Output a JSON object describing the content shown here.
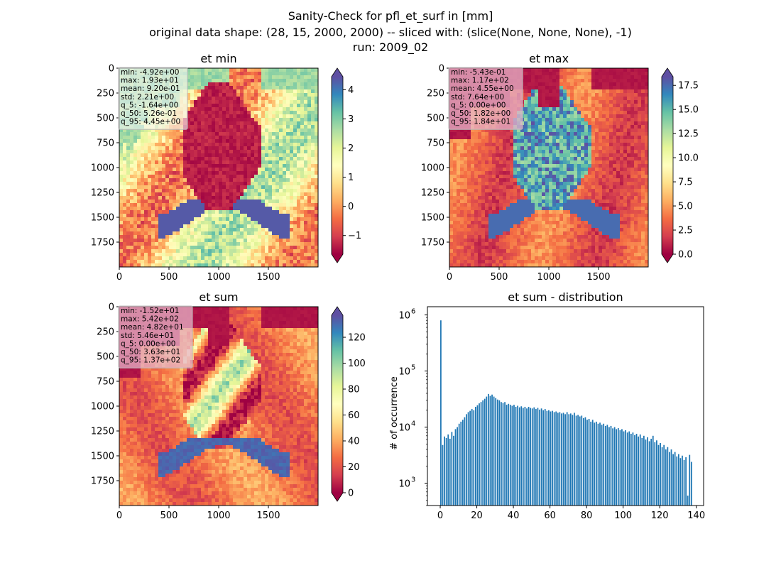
{
  "figure": {
    "title_lines": [
      "Sanity-Check for pfl_et_surf in [mm]",
      "original data shape: (28, 15, 2000, 2000) -- sliced with: (slice(None, None, None), -1)",
      "run: 2009_02"
    ]
  },
  "chart_data": [
    {
      "type": "heatmap",
      "title": "et min",
      "colormap": "Spectral",
      "x_ticks": [
        "0",
        "500",
        "1000",
        "1500"
      ],
      "y_ticks": [
        "0",
        "250",
        "500",
        "750",
        "1000",
        "1250",
        "1500",
        "1750"
      ],
      "xlim": [
        0,
        2000
      ],
      "ylim": [
        0,
        2000
      ],
      "colorbar": {
        "range": [
          -1.64,
          4.45
        ],
        "ticks": [
          -1,
          0,
          1,
          2,
          3,
          4
        ],
        "tick_labels": [
          "−1",
          "0",
          "1",
          "2",
          "3",
          "4"
        ],
        "extend": "both"
      },
      "stats": [
        "min: -4.92e+00",
        "max: 1.93e+01",
        "mean: 9.20e-01",
        "std: 2.21e+00",
        "q_5: -1.64e+00",
        "q_50: 5.26e-01",
        "q_95: 4.45e+00"
      ]
    },
    {
      "type": "heatmap",
      "title": "et max",
      "colormap": "Spectral",
      "x_ticks": [
        "0",
        "500",
        "1000",
        "1500"
      ],
      "y_ticks": [
        "0",
        "250",
        "500",
        "750",
        "1000",
        "1250",
        "1500",
        "1750"
      ],
      "xlim": [
        0,
        2000
      ],
      "ylim": [
        0,
        2000
      ],
      "colorbar": {
        "range": [
          0.0,
          18.4
        ],
        "ticks": [
          0,
          2.5,
          5,
          7.5,
          10,
          12.5,
          15,
          17.5
        ],
        "tick_labels": [
          "0.0",
          "2.5",
          "5.0",
          "7.5",
          "10.0",
          "12.5",
          "15.0",
          "17.5"
        ],
        "extend": "both"
      },
      "stats": [
        "min: -5.43e-01",
        "max: 1.17e+02",
        "mean: 4.55e+00",
        "std: 7.64e+00",
        "q_5: 0.00e+00",
        "q_50: 1.82e+00",
        "q_95: 1.84e+01"
      ]
    },
    {
      "type": "heatmap",
      "title": "et sum",
      "colormap": "Spectral",
      "x_ticks": [
        "0",
        "500",
        "1000",
        "1500"
      ],
      "y_ticks": [
        "0",
        "250",
        "500",
        "750",
        "1000",
        "1250",
        "1500",
        "1750"
      ],
      "xlim": [
        0,
        2000
      ],
      "ylim": [
        0,
        2000
      ],
      "colorbar": {
        "range": [
          0.0,
          137
        ],
        "ticks": [
          0,
          20,
          40,
          60,
          80,
          100,
          120
        ],
        "tick_labels": [
          "0",
          "20",
          "40",
          "60",
          "80",
          "100",
          "120"
        ],
        "extend": "both"
      },
      "stats": [
        "min: -1.52e+01",
        "max: 5.42e+02",
        "mean: 4.82e+01",
        "std: 5.46e+01",
        "q_5: 0.00e+00",
        "q_50: 3.63e+01",
        "q_95: 1.37e+02"
      ]
    },
    {
      "type": "bar",
      "title": "et sum - distribution",
      "ylabel": "# of occurrence",
      "yscale": "log",
      "xlim": [
        -7,
        144
      ],
      "ylim": [
        400,
        1400000
      ],
      "x_ticks": [
        0,
        20,
        40,
        60,
        80,
        100,
        120,
        140
      ],
      "y_ticks": [
        {
          "value": 1000,
          "base": "10",
          "exp": "3"
        },
        {
          "value": 10000,
          "base": "10",
          "exp": "4"
        },
        {
          "value": 100000,
          "base": "10",
          "exp": "5"
        },
        {
          "value": 1000000,
          "base": "10",
          "exp": "6"
        }
      ],
      "bar_color": "#1f77b4",
      "bin_width": 0.685,
      "bins": [
        {
          "x": 0,
          "y": 800000
        },
        {
          "x": 1,
          "y": 4800
        },
        {
          "x": 2,
          "y": 6800
        },
        {
          "x": 3,
          "y": 6400
        },
        {
          "x": 4,
          "y": 7400
        },
        {
          "x": 5,
          "y": 6200
        },
        {
          "x": 6,
          "y": 8200
        },
        {
          "x": 7,
          "y": 7000
        },
        {
          "x": 8,
          "y": 9200
        },
        {
          "x": 9,
          "y": 10000
        },
        {
          "x": 10,
          "y": 11500
        },
        {
          "x": 11,
          "y": 12500
        },
        {
          "x": 12,
          "y": 13500
        },
        {
          "x": 13,
          "y": 15000
        },
        {
          "x": 14,
          "y": 17000
        },
        {
          "x": 15,
          "y": 18500
        },
        {
          "x": 16,
          "y": 19500
        },
        {
          "x": 17,
          "y": 21000
        },
        {
          "x": 18,
          "y": 20000
        },
        {
          "x": 19,
          "y": 23000
        },
        {
          "x": 20,
          "y": 24500
        },
        {
          "x": 21,
          "y": 26500
        },
        {
          "x": 22,
          "y": 28000
        },
        {
          "x": 23,
          "y": 30000
        },
        {
          "x": 24,
          "y": 32000
        },
        {
          "x": 25,
          "y": 35000
        },
        {
          "x": 26,
          "y": 39000
        },
        {
          "x": 27,
          "y": 36000
        },
        {
          "x": 28,
          "y": 38000
        },
        {
          "x": 29,
          "y": 35000
        },
        {
          "x": 30,
          "y": 33000
        },
        {
          "x": 31,
          "y": 31000
        },
        {
          "x": 32,
          "y": 30000
        },
        {
          "x": 33,
          "y": 28000
        },
        {
          "x": 34,
          "y": 27000
        },
        {
          "x": 35,
          "y": 28000
        },
        {
          "x": 36,
          "y": 25000
        },
        {
          "x": 37,
          "y": 26000
        },
        {
          "x": 38,
          "y": 25000
        },
        {
          "x": 39,
          "y": 24000
        },
        {
          "x": 40,
          "y": 25000
        },
        {
          "x": 41,
          "y": 23000
        },
        {
          "x": 42,
          "y": 24000
        },
        {
          "x": 43,
          "y": 22500
        },
        {
          "x": 44,
          "y": 23500
        },
        {
          "x": 45,
          "y": 22000
        },
        {
          "x": 46,
          "y": 23000
        },
        {
          "x": 47,
          "y": 21500
        },
        {
          "x": 48,
          "y": 23000
        },
        {
          "x": 49,
          "y": 22000
        },
        {
          "x": 50,
          "y": 21500
        },
        {
          "x": 51,
          "y": 22500
        },
        {
          "x": 52,
          "y": 21000
        },
        {
          "x": 53,
          "y": 22000
        },
        {
          "x": 54,
          "y": 20500
        },
        {
          "x": 55,
          "y": 21500
        },
        {
          "x": 56,
          "y": 20000
        },
        {
          "x": 57,
          "y": 21000
        },
        {
          "x": 58,
          "y": 19500
        },
        {
          "x": 59,
          "y": 20000
        },
        {
          "x": 60,
          "y": 19000
        },
        {
          "x": 61,
          "y": 19500
        },
        {
          "x": 62,
          "y": 18500
        },
        {
          "x": 63,
          "y": 19000
        },
        {
          "x": 64,
          "y": 18000
        },
        {
          "x": 65,
          "y": 18500
        },
        {
          "x": 66,
          "y": 17500
        },
        {
          "x": 67,
          "y": 18000
        },
        {
          "x": 68,
          "y": 17000
        },
        {
          "x": 69,
          "y": 18500
        },
        {
          "x": 70,
          "y": 17000
        },
        {
          "x": 71,
          "y": 17500
        },
        {
          "x": 72,
          "y": 16500
        },
        {
          "x": 73,
          "y": 18000
        },
        {
          "x": 74,
          "y": 16000
        },
        {
          "x": 75,
          "y": 16500
        },
        {
          "x": 76,
          "y": 15500
        },
        {
          "x": 77,
          "y": 16000
        },
        {
          "x": 78,
          "y": 14500
        },
        {
          "x": 79,
          "y": 15000
        },
        {
          "x": 80,
          "y": 13500
        },
        {
          "x": 81,
          "y": 14000
        },
        {
          "x": 82,
          "y": 12500
        },
        {
          "x": 83,
          "y": 13500
        },
        {
          "x": 84,
          "y": 12000
        },
        {
          "x": 85,
          "y": 12500
        },
        {
          "x": 86,
          "y": 11500
        },
        {
          "x": 87,
          "y": 12000
        },
        {
          "x": 88,
          "y": 11000
        },
        {
          "x": 89,
          "y": 11500
        },
        {
          "x": 90,
          "y": 10500
        },
        {
          "x": 91,
          "y": 11000
        },
        {
          "x": 92,
          "y": 10000
        },
        {
          "x": 93,
          "y": 10500
        },
        {
          "x": 94,
          "y": 9500
        },
        {
          "x": 95,
          "y": 10000
        },
        {
          "x": 96,
          "y": 9200
        },
        {
          "x": 97,
          "y": 9600
        },
        {
          "x": 98,
          "y": 8800
        },
        {
          "x": 99,
          "y": 9200
        },
        {
          "x": 100,
          "y": 8400
        },
        {
          "x": 101,
          "y": 8800
        },
        {
          "x": 102,
          "y": 8000
        },
        {
          "x": 103,
          "y": 8400
        },
        {
          "x": 104,
          "y": 7600
        },
        {
          "x": 105,
          "y": 8000
        },
        {
          "x": 106,
          "y": 7200
        },
        {
          "x": 107,
          "y": 7600
        },
        {
          "x": 108,
          "y": 6800
        },
        {
          "x": 109,
          "y": 7400
        },
        {
          "x": 110,
          "y": 6400
        },
        {
          "x": 111,
          "y": 7000
        },
        {
          "x": 112,
          "y": 6000
        },
        {
          "x": 113,
          "y": 6600
        },
        {
          "x": 114,
          "y": 5600
        },
        {
          "x": 115,
          "y": 6200
        },
        {
          "x": 116,
          "y": 7000
        },
        {
          "x": 117,
          "y": 5400
        },
        {
          "x": 118,
          "y": 5800
        },
        {
          "x": 119,
          "y": 4800
        },
        {
          "x": 120,
          "y": 5200
        },
        {
          "x": 121,
          "y": 4400
        },
        {
          "x": 122,
          "y": 4800
        },
        {
          "x": 123,
          "y": 4000
        },
        {
          "x": 124,
          "y": 4400
        },
        {
          "x": 125,
          "y": 3600
        },
        {
          "x": 126,
          "y": 4000
        },
        {
          "x": 127,
          "y": 3300
        },
        {
          "x": 128,
          "y": 3600
        },
        {
          "x": 129,
          "y": 3000
        },
        {
          "x": 130,
          "y": 3300
        },
        {
          "x": 131,
          "y": 2800
        },
        {
          "x": 132,
          "y": 3100
        },
        {
          "x": 133,
          "y": 2600
        },
        {
          "x": 134,
          "y": 2900
        },
        {
          "x": 135,
          "y": 600
        },
        {
          "x": 136,
          "y": 3200
        },
        {
          "x": 137,
          "y": 2400
        }
      ]
    }
  ]
}
